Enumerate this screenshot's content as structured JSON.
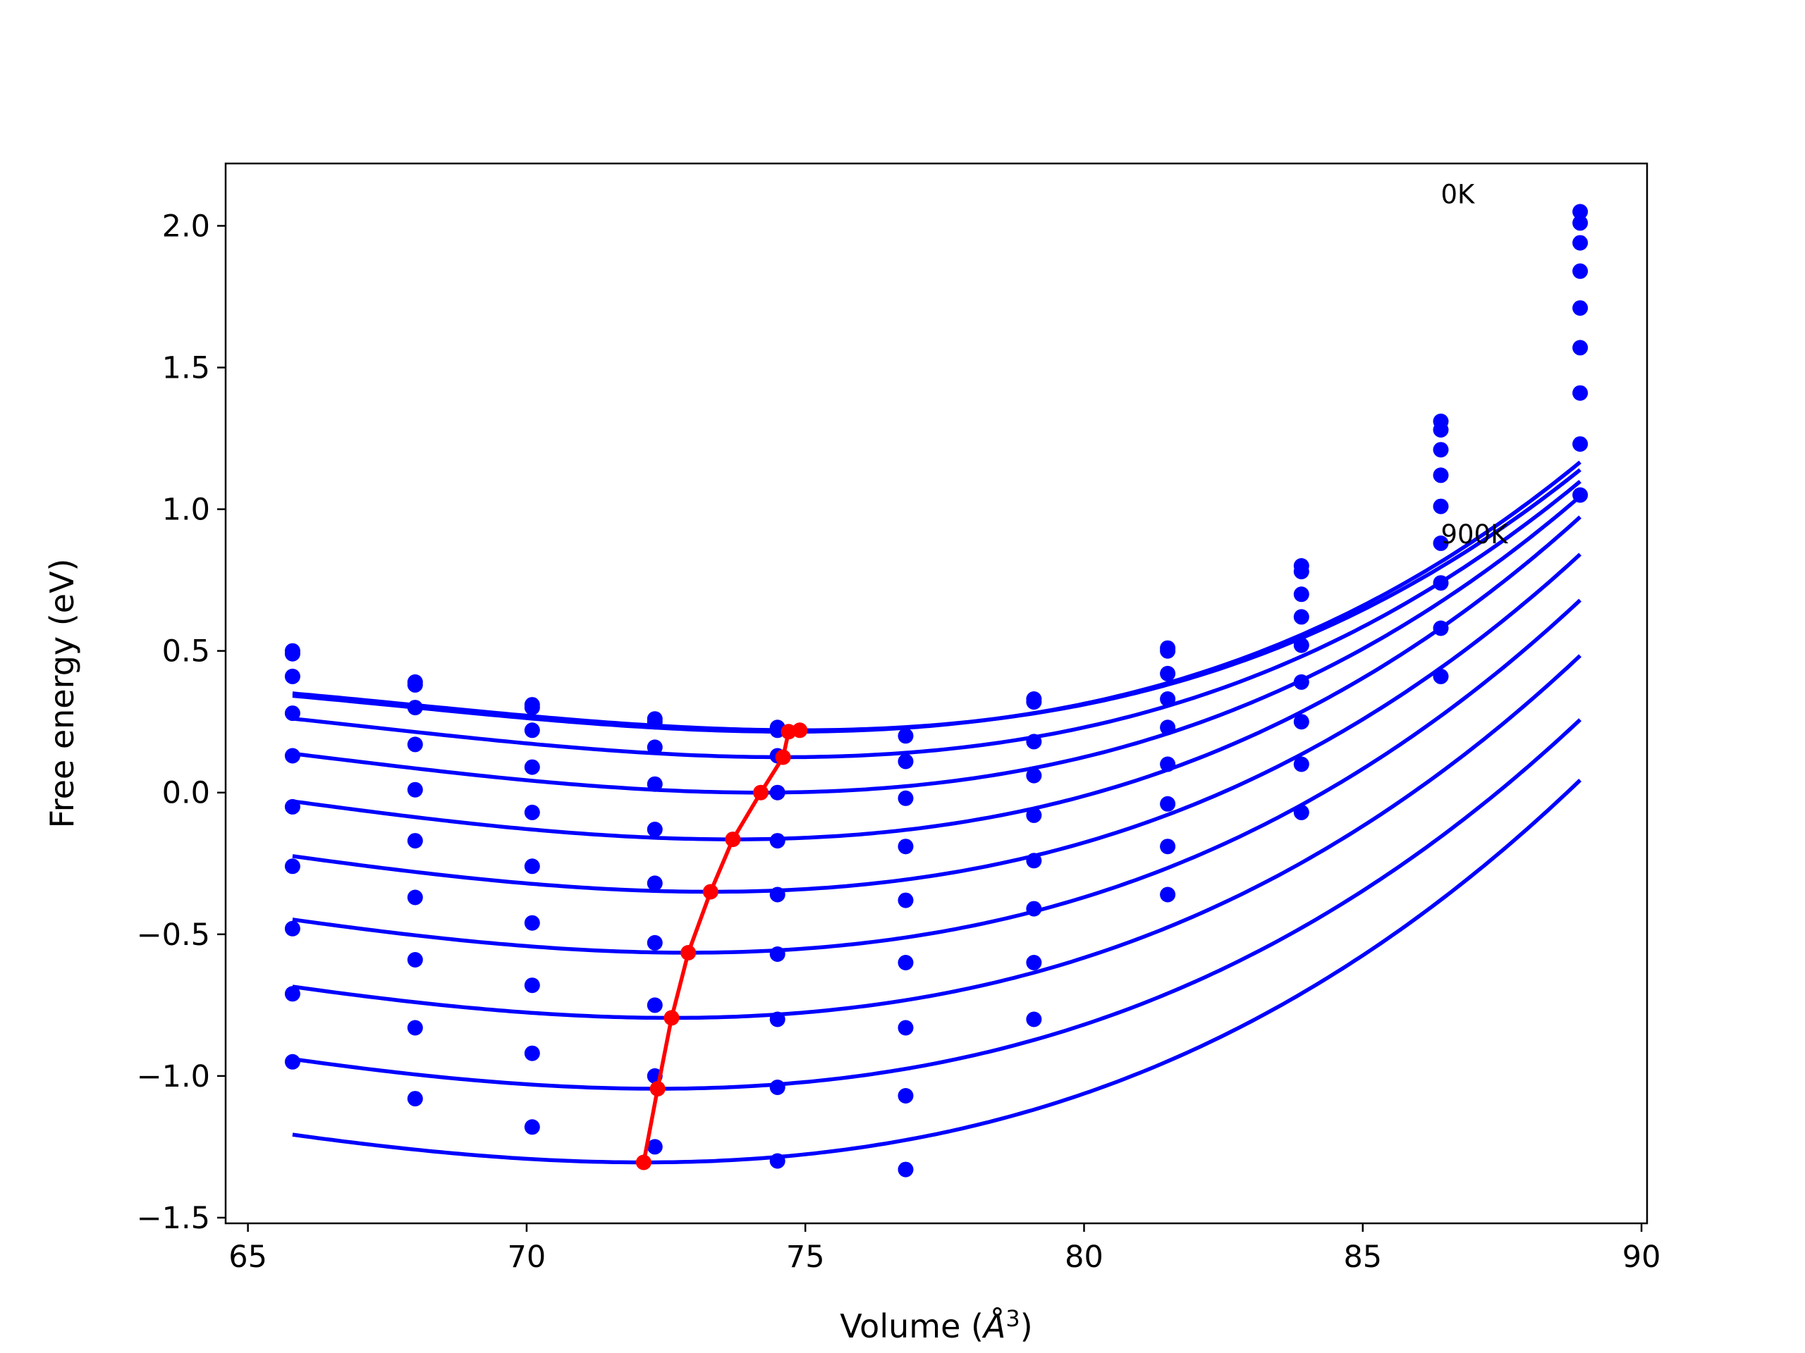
{
  "chart_data": {
    "type": "line",
    "title": "",
    "xlabel": "Volume (",
    "xlabel_symbol": "Å",
    "xlabel_power": "3",
    "xlabel_close": ")",
    "ylabel": "Free energy (eV)",
    "xlim": [
      64.6,
      90.1
    ],
    "ylim": [
      -1.52,
      2.22
    ],
    "xticks": [
      65,
      70,
      75,
      80,
      85,
      90
    ],
    "yticks": [
      -1.5,
      -1.0,
      -0.5,
      0.0,
      0.5,
      1.0,
      1.5,
      2.0
    ],
    "xtick_labels": [
      "65",
      "70",
      "75",
      "80",
      "85",
      "90"
    ],
    "ytick_labels": [
      "−1.5",
      "−1.0",
      "−0.5",
      "0.0",
      "0.5",
      "1.0",
      "1.5",
      "2.0"
    ],
    "grid": false,
    "legend": "none",
    "colors": {
      "curves": "#0000ff",
      "minima": "#ff0000",
      "frame": "#000000"
    },
    "annotations": [
      {
        "text": "0K",
        "x": 86.4,
        "y": 2.08
      },
      {
        "text": "900K",
        "x": 86.4,
        "y": 0.88
      }
    ],
    "volumes": [
      65.8,
      68.0,
      70.1,
      72.3,
      74.5,
      76.8,
      79.1,
      81.5,
      83.9,
      86.4,
      88.9
    ],
    "series": [
      {
        "temperature_index": 0,
        "points": [
          0.5,
          0.39,
          0.31,
          0.26,
          0.23,
          null,
          0.33,
          0.51,
          0.8,
          1.31,
          2.05
        ],
        "fit": {
          "V0": 74.9,
          "E0": 0.22,
          "a": 0.0028,
          "b": 0.000135
        }
      },
      {
        "temperature_index": 1,
        "points": [
          0.49,
          0.38,
          0.3,
          0.25,
          0.22,
          0.2,
          0.32,
          0.5,
          0.78,
          1.28,
          2.01
        ],
        "fit": {
          "V0": 74.7,
          "E0": 0.215,
          "a": 0.0028,
          "b": 0.000135
        }
      },
      {
        "temperature_index": 2,
        "points": [
          0.41,
          0.3,
          0.22,
          0.16,
          0.13,
          0.11,
          0.18,
          0.42,
          0.7,
          1.21,
          1.94
        ],
        "fit": {
          "V0": 74.6,
          "E0": 0.125,
          "a": 0.0029,
          "b": 0.00013
        }
      },
      {
        "temperature_index": 3,
        "points": [
          0.28,
          0.17,
          0.09,
          0.03,
          0.0,
          -0.02,
          0.06,
          0.33,
          0.62,
          1.12,
          1.84
        ],
        "fit": {
          "V0": 74.2,
          "E0": 0.0,
          "a": 0.003,
          "b": 0.000125
        }
      },
      {
        "temperature_index": 4,
        "points": [
          0.13,
          0.01,
          -0.07,
          -0.13,
          -0.17,
          -0.19,
          -0.08,
          0.23,
          0.52,
          1.01,
          1.71
        ],
        "fit": {
          "V0": 73.7,
          "E0": -0.165,
          "a": 0.0031,
          "b": 0.00012
        }
      },
      {
        "temperature_index": 5,
        "points": [
          -0.05,
          -0.17,
          -0.26,
          -0.32,
          -0.36,
          -0.38,
          -0.24,
          0.1,
          0.39,
          0.88,
          1.57
        ],
        "fit": {
          "V0": 73.3,
          "E0": -0.35,
          "a": 0.0031,
          "b": 0.000115
        }
      },
      {
        "temperature_index": 6,
        "points": [
          -0.26,
          -0.37,
          -0.46,
          -0.53,
          -0.57,
          -0.6,
          -0.41,
          -0.04,
          0.25,
          0.74,
          1.41
        ],
        "fit": {
          "V0": 72.9,
          "E0": -0.565,
          "a": 0.0031,
          "b": 0.00011
        }
      },
      {
        "temperature_index": 7,
        "points": [
          -0.48,
          -0.59,
          -0.68,
          -0.75,
          -0.8,
          -0.83,
          -0.6,
          -0.19,
          0.1,
          0.58,
          1.23
        ],
        "fit": {
          "V0": 72.6,
          "E0": -0.795,
          "a": 0.0031,
          "b": 0.000105
        }
      },
      {
        "temperature_index": 8,
        "points": [
          -0.71,
          -0.83,
          -0.92,
          -1.0,
          -1.04,
          -1.07,
          -0.8,
          -0.36,
          -0.07,
          0.41,
          1.05
        ],
        "fit": {
          "V0": 72.35,
          "E0": -1.045,
          "a": 0.0031,
          "b": 0.0001
        }
      },
      {
        "temperature_index": 9,
        "points": [
          -0.95,
          -1.08,
          -1.18,
          -1.25,
          -1.3,
          -1.33,
          null,
          null,
          null,
          null,
          null
        ],
        "fit": {
          "V0": 72.1,
          "E0": -1.305,
          "a": 0.0031,
          "b": 0.0001
        }
      }
    ],
    "minima_path": {
      "x": [
        72.1,
        72.35,
        72.6,
        72.9,
        73.3,
        73.7,
        74.2,
        74.6,
        74.7,
        74.9
      ],
      "y": [
        -1.305,
        -1.045,
        -0.795,
        -0.565,
        -0.35,
        -0.165,
        0.0,
        0.125,
        0.215,
        0.22
      ]
    }
  }
}
